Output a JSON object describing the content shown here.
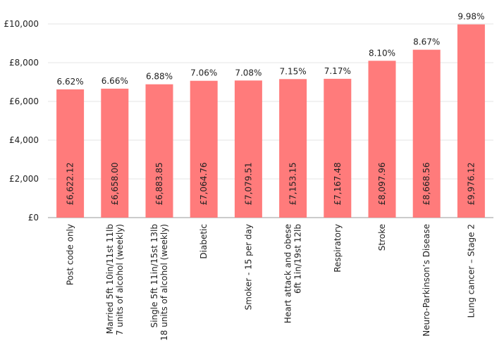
{
  "chart_data": {
    "type": "bar",
    "title": "",
    "xlabel": "",
    "ylabel": "",
    "ylim": [
      0,
      10000
    ],
    "yticks": [
      0,
      2000,
      4000,
      6000,
      8000,
      10000
    ],
    "ytick_labels": [
      "£0",
      "£2,000",
      "£4,000",
      "£6,000",
      "£8,000",
      "£10,000"
    ],
    "grid": true,
    "bar_color": "#ff7b7b",
    "categories": [
      [
        "Post code only"
      ],
      [
        "Married 5ft 10in/11st 11lb",
        "7 units of alcohol (weekly)"
      ],
      [
        "Single 5ft 11in/15st 13lb",
        "18 units of alcohol (weekly)"
      ],
      [
        "Diabetic"
      ],
      [
        "Smoker - 15 per day"
      ],
      [
        "Heart attack and obese",
        "6ft 1in/19st 12lb"
      ],
      [
        "Respiratory"
      ],
      [
        "Stroke"
      ],
      [
        "Neuro-Parkinson’s Disease"
      ],
      [
        "Lung cancer – Stage 2"
      ]
    ],
    "values": [
      6622.12,
      6658.0,
      6883.85,
      7064.76,
      7079.51,
      7153.15,
      7167.48,
      8097.96,
      8668.56,
      9976.12
    ],
    "value_labels": [
      "£6,622.12",
      "£6,658.00",
      "£6,883.85",
      "£7,064.76",
      "£7,079.51",
      "£7,153.15",
      "£7,167.48",
      "£8,097.96",
      "£8,668.56",
      "£9,976.12"
    ],
    "percent_labels": [
      "6.62%",
      "6.66%",
      "6.88%",
      "7.06%",
      "7.08%",
      "7.15%",
      "7.17%",
      "8.10%",
      "8.67%",
      "9.98%"
    ]
  }
}
